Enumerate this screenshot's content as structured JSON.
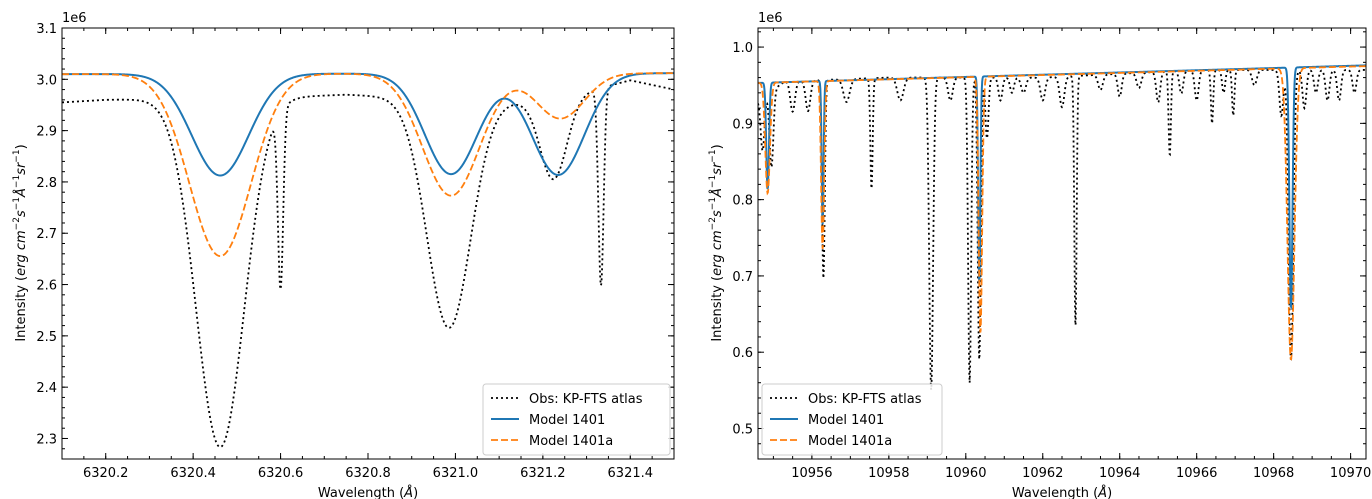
{
  "chart_data": [
    {
      "type": "line",
      "xlabel": "Wavelength (Å)",
      "ylabel": "Intensity (erg cm⁻² s⁻¹ Å⁻¹ sr⁻¹)",
      "offset_text": "1e6",
      "xlim": [
        6320.1,
        6321.5
      ],
      "ylim": [
        2.26,
        3.1
      ],
      "x_ticks": [
        6320.2,
        6320.4,
        6320.6,
        6320.8,
        6321.0,
        6321.2,
        6321.4
      ],
      "x_tick_labels": [
        "6320.2",
        "6320.4",
        "6320.6",
        "6320.8",
        "6321.0",
        "6321.2",
        "6321.4"
      ],
      "y_ticks": [
        2.3,
        2.4,
        2.5,
        2.6,
        2.7,
        2.8,
        2.9,
        3.0,
        3.1
      ],
      "y_tick_labels": [
        "2.3",
        "2.4",
        "2.5",
        "2.6",
        "2.7",
        "2.8",
        "2.9",
        "3.0",
        "3.1"
      ],
      "legend_position": "lower-right",
      "series": [
        {
          "name": "Obs: KP-FTS atlas",
          "color": "#000000",
          "style": "dotted",
          "baseline": [
            [
              6320.1,
              2.955
            ],
            [
              6320.2,
              2.96
            ],
            [
              6320.6,
              2.965
            ],
            [
              6320.75,
              2.97
            ],
            [
              6321.0,
              2.96
            ],
            [
              6321.2,
              2.955
            ],
            [
              6321.4,
              2.998
            ],
            [
              6321.5,
              2.98
            ]
          ],
          "lines": [
            [
              6320.462,
              0.68,
              0.055
            ],
            [
              6320.6,
              0.345,
              0.006
            ],
            [
              6320.985,
              0.445,
              0.05
            ],
            [
              6321.225,
              0.155,
              0.03
            ],
            [
              6321.333,
              0.385,
              0.006
            ]
          ]
        },
        {
          "name": "Model 1401",
          "color": "#1f77b4",
          "style": "solid",
          "baseline": [
            [
              6320.1,
              3.01
            ],
            [
              6321.5,
              3.012
            ]
          ],
          "lines": [
            [
              6320.462,
              0.198,
              0.065
            ],
            [
              6320.99,
              0.196,
              0.06
            ],
            [
              6321.235,
              0.198,
              0.06
            ]
          ]
        },
        {
          "name": "Model 1401a",
          "color": "#ff7f0e",
          "style": "dashed",
          "baseline": [
            [
              6320.1,
              3.01
            ],
            [
              6321.5,
              3.012
            ]
          ],
          "lines": [
            [
              6320.462,
              0.355,
              0.07
            ],
            [
              6320.99,
              0.238,
              0.065
            ],
            [
              6321.24,
              0.088,
              0.055
            ]
          ]
        }
      ]
    },
    {
      "type": "line",
      "xlabel": "Wavelength (Å)",
      "ylabel": "Intensity (erg cm⁻² s⁻¹ Å⁻¹ sr⁻¹)",
      "offset_text": "1e6",
      "xlim": [
        10954.6,
        10970.4
      ],
      "ylim": [
        0.46,
        1.025
      ],
      "x_ticks": [
        10956,
        10958,
        10960,
        10962,
        10964,
        10966,
        10968,
        10970
      ],
      "x_tick_labels": [
        "10956",
        "10958",
        "10960",
        "10962",
        "10964",
        "10966",
        "10968",
        "10970"
      ],
      "y_ticks": [
        0.5,
        0.6,
        0.7,
        0.8,
        0.9,
        1.0
      ],
      "y_tick_labels": [
        "0.5",
        "0.6",
        "0.7",
        "0.8",
        "0.9",
        "1.0"
      ],
      "legend_position": "lower-left",
      "series": [
        {
          "name": "Obs: KP-FTS atlas",
          "color": "#000000",
          "style": "dotted",
          "baseline": [
            [
              10954.6,
              0.93
            ],
            [
              10955.3,
              0.955
            ],
            [
              10958,
              0.96
            ],
            [
              10962,
              0.96
            ],
            [
              10966,
              0.97
            ],
            [
              10970.4,
              0.97
            ]
          ],
          "lines": [
            [
              10954.72,
              0.07,
              0.05
            ],
            [
              10954.95,
              0.1,
              0.05
            ],
            [
              10955.5,
              0.04,
              0.06
            ],
            [
              10955.9,
              0.04,
              0.06
            ],
            [
              10956.3,
              0.26,
              0.035
            ],
            [
              10956.9,
              0.03,
              0.08
            ],
            [
              10957.55,
              0.145,
              0.03
            ],
            [
              10958.3,
              0.03,
              0.08
            ],
            [
              10959.1,
              0.41,
              0.05
            ],
            [
              10959.6,
              0.03,
              0.06
            ],
            [
              10960.1,
              0.4,
              0.04
            ],
            [
              10960.35,
              0.37,
              0.04
            ],
            [
              10960.55,
              0.08,
              0.04
            ],
            [
              10960.9,
              0.03,
              0.05
            ],
            [
              10961.2,
              0.02,
              0.05
            ],
            [
              10961.5,
              0.02,
              0.06
            ],
            [
              10962.0,
              0.03,
              0.06
            ],
            [
              10962.5,
              0.04,
              0.06
            ],
            [
              10962.85,
              0.33,
              0.03
            ],
            [
              10963.5,
              0.02,
              0.06
            ],
            [
              10964.0,
              0.03,
              0.05
            ],
            [
              10964.5,
              0.02,
              0.06
            ],
            [
              10965.0,
              0.04,
              0.05
            ],
            [
              10965.3,
              0.11,
              0.03
            ],
            [
              10965.6,
              0.03,
              0.05
            ],
            [
              10966.0,
              0.04,
              0.05
            ],
            [
              10966.4,
              0.07,
              0.03
            ],
            [
              10966.7,
              0.03,
              0.04
            ],
            [
              10966.95,
              0.06,
              0.03
            ],
            [
              10967.5,
              0.02,
              0.06
            ],
            [
              10968.45,
              0.38,
              0.06
            ],
            [
              10968.2,
              0.06,
              0.05
            ],
            [
              10968.8,
              0.05,
              0.05
            ],
            [
              10969.1,
              0.03,
              0.05
            ],
            [
              10969.4,
              0.04,
              0.05
            ],
            [
              10969.7,
              0.04,
              0.05
            ],
            [
              10970.1,
              0.03,
              0.05
            ]
          ]
        },
        {
          "name": "Model 1401",
          "color": "#1f77b4",
          "style": "solid",
          "baseline": [
            [
              10954.6,
              0.953
            ],
            [
              10970.4,
              0.976
            ]
          ],
          "lines": [
            [
              10954.85,
              0.14,
              0.035
            ],
            [
              10956.28,
              0.188,
              0.025
            ],
            [
              10960.35,
              0.272,
              0.028
            ],
            [
              10968.45,
              0.316,
              0.04
            ]
          ]
        },
        {
          "name": "Model 1401a",
          "color": "#ff7f0e",
          "style": "dashed",
          "baseline": [
            [
              10954.6,
              0.953
            ],
            [
              10970.4,
              0.975
            ]
          ],
          "lines": [
            [
              10954.85,
              0.145,
              0.06
            ],
            [
              10956.28,
              0.22,
              0.04
            ],
            [
              10960.38,
              0.336,
              0.045
            ],
            [
              10968.45,
              0.382,
              0.09
            ]
          ]
        }
      ]
    }
  ]
}
